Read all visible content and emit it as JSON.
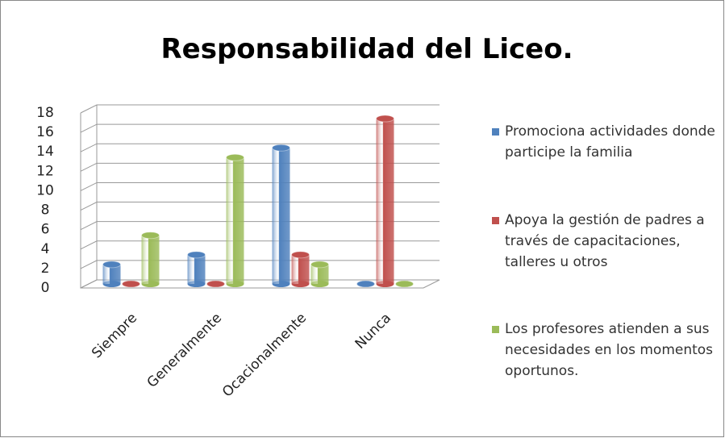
{
  "chart_data": {
    "type": "bar3d",
    "title": "Responsabilidad del Liceo.",
    "categories": [
      "Siempre",
      "Generalmente",
      "Ocacionalmente",
      "Nunca"
    ],
    "series": [
      {
        "name": "Promociona actividades donde participe la familia",
        "color": "#4f81bd",
        "values": [
          2,
          3,
          14,
          0
        ]
      },
      {
        "name": "Apoya la gestión de padres a través de capacitaciones, talleres u otros",
        "color": "#c0504d",
        "values": [
          0,
          0,
          3,
          17
        ]
      },
      {
        "name": "Los profesores atienden a sus necesidades en los momentos oportunos.",
        "color": "#9bbb59",
        "values": [
          5,
          13,
          2,
          0
        ]
      }
    ],
    "ylim": [
      0,
      18
    ],
    "yticks": [
      0,
      2,
      4,
      6,
      8,
      10,
      12,
      14,
      16,
      18
    ],
    "grid": true,
    "legend": "right"
  }
}
